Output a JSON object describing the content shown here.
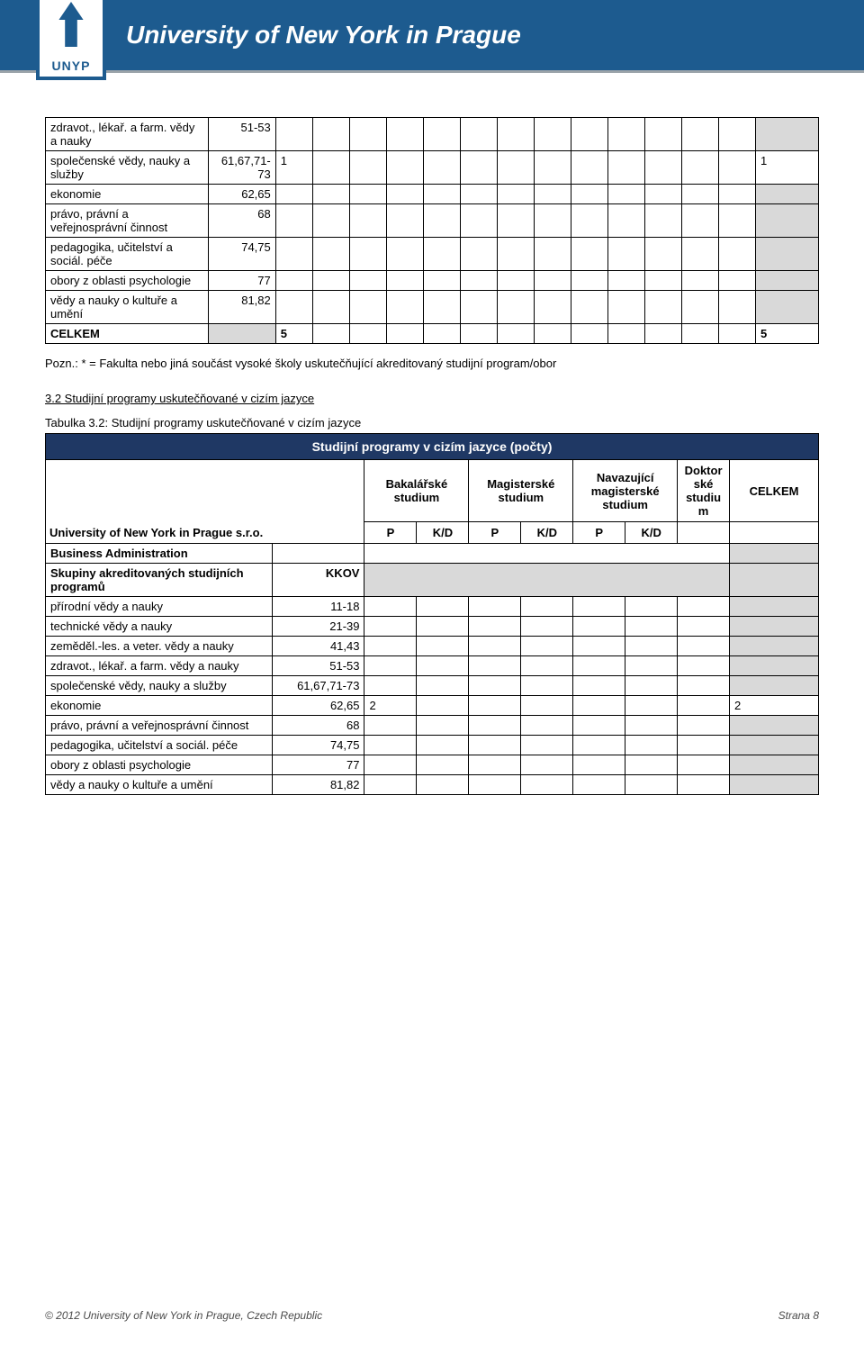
{
  "banner": {
    "title": "University of New York in Prague",
    "logo_text": "UNYP"
  },
  "table1": {
    "rows": [
      {
        "label": "zdravot., lékař. a farm. vědy a nauky",
        "code": "51-53",
        "val1": "",
        "val_last": "",
        "gray_last": true
      },
      {
        "label": "společenské vědy, nauky a služby",
        "code": "61,67,71-73",
        "val1": "1",
        "val_last": "1",
        "gray_last": false
      },
      {
        "label": "ekonomie",
        "code": "62,65",
        "val1": "",
        "val_last": "",
        "gray_last": true
      },
      {
        "label": "právo, právní a veřejnosprávní činnost",
        "code": "68",
        "val1": "",
        "val_last": "",
        "gray_last": true
      },
      {
        "label": "pedagogika, učitelství a sociál. péče",
        "code": "74,75",
        "val1": "",
        "val_last": "",
        "gray_last": true
      },
      {
        "label": "obory z oblasti psychologie",
        "code": "77",
        "val1": "",
        "val_last": "",
        "gray_last": true
      },
      {
        "label": "vědy a nauky o kultuře a umění",
        "code": "81,82",
        "val1": "",
        "val_last": "",
        "gray_last": true
      }
    ],
    "total_label": "CELKEM",
    "total_val1": "5",
    "total_val_last": "5"
  },
  "note": "Pozn.: * = Fakulta nebo jiná součást vysoké školy uskutečňující akreditovaný studijní program/obor",
  "section_heading": "3.2 Studijní programy uskutečňované v cizím jazyce",
  "table2_caption": "Tabulka 3.2:  Studijní programy uskutečňované v cizím jazyce",
  "table2": {
    "header_title": "Studijní programy v cizím jazyce (počty)",
    "header_uni": "University of New York in Prague s.r.o.",
    "h_bak": "Bakalářské studium",
    "h_mag": "Magisterské studium",
    "h_nav": "Navazující magisterské studium",
    "h_dok": "Doktorské studium",
    "h_celkem": "CELKEM",
    "sub_p": "P",
    "sub_kd": "K/D",
    "rows": [
      {
        "label": "Business Administration",
        "bold": true,
        "code": "",
        "v1": "",
        "vlast": "",
        "merge_mid": true,
        "gray_last": true
      },
      {
        "label": "Skupiny akreditovaných studijních programů",
        "bold": true,
        "code": "KKOV",
        "v1": "",
        "vlast": "",
        "merge_mid": true,
        "gray_last": true,
        "gray_mid": true
      },
      {
        "label": "přírodní vědy a nauky",
        "code": "11-18",
        "v1": "",
        "vlast": "",
        "gray_last": true
      },
      {
        "label": "technické vědy a nauky",
        "code": "21-39",
        "v1": "",
        "vlast": "",
        "gray_last": true
      },
      {
        "label": "zeměděl.-les. a veter. vědy a nauky",
        "code": "41,43",
        "v1": "",
        "vlast": "",
        "gray_last": true
      },
      {
        "label": "zdravot., lékař. a farm. vědy a nauky",
        "code": "51-53",
        "v1": "",
        "vlast": "",
        "gray_last": true
      },
      {
        "label": "společenské vědy, nauky a služby",
        "code": "61,67,71-73",
        "v1": "",
        "vlast": "",
        "gray_last": true
      },
      {
        "label": "ekonomie",
        "code": "62,65",
        "v1": "2",
        "vlast": "2",
        "gray_last": false
      },
      {
        "label": "právo, právní a veřejnosprávní činnost",
        "code": "68",
        "v1": "",
        "vlast": "",
        "gray_last": true
      },
      {
        "label": "pedagogika, učitelství a sociál. péče",
        "code": "74,75",
        "v1": "",
        "vlast": "",
        "gray_last": true
      },
      {
        "label": "obory z oblasti psychologie",
        "code": "77",
        "v1": "",
        "vlast": "",
        "gray_last": true
      },
      {
        "label": "vědy a nauky o kultuře a umění",
        "code": "81,82",
        "v1": "",
        "vlast": "",
        "gray_last": true
      }
    ]
  },
  "footer": {
    "left": "© 2012 University of New York in Prague, Czech Republic",
    "right": "Strana 8"
  }
}
